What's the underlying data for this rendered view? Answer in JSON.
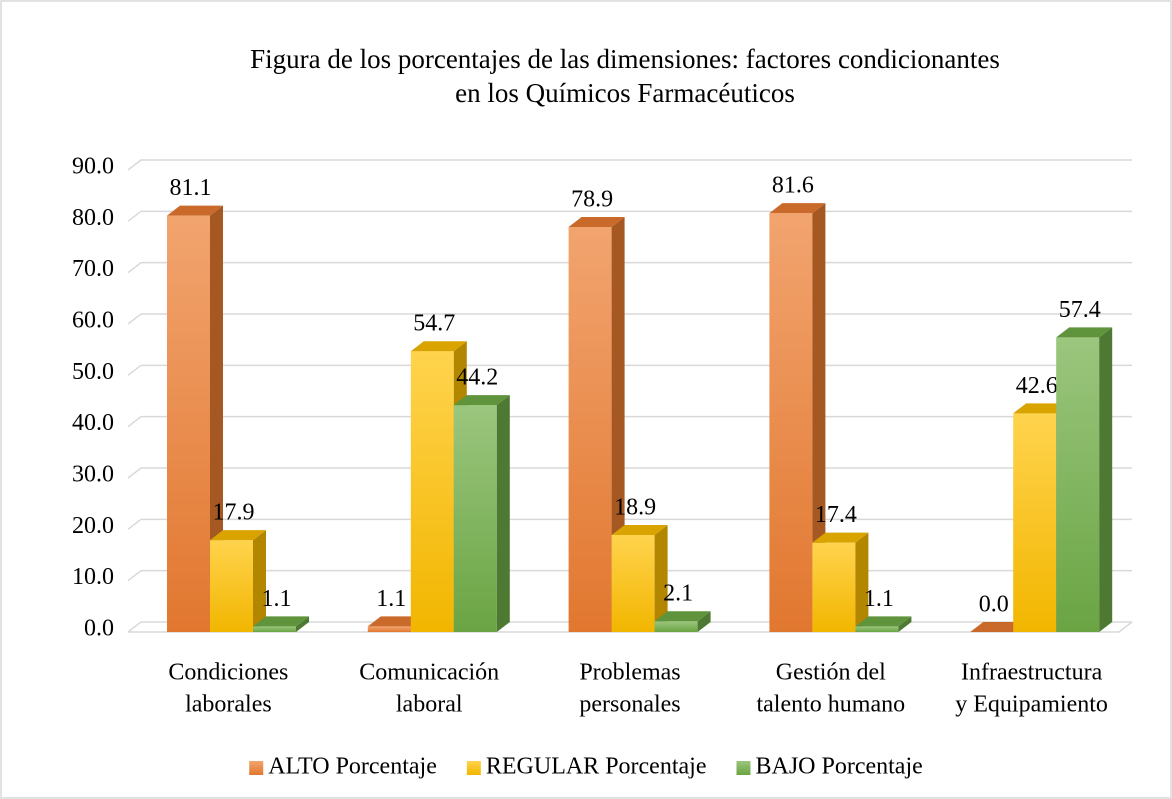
{
  "chart_data": {
    "type": "bar3d",
    "title": [
      "Figura de los porcentajes de las dimensiones: factores condicionantes",
      "en los Químicos Farmacéuticos"
    ],
    "categories": [
      [
        "Condiciones",
        "laborales"
      ],
      [
        "Comunicación",
        "laboral"
      ],
      [
        "Problemas",
        "personales"
      ],
      [
        "Gestión del",
        "talento humano"
      ],
      [
        "Infraestructura",
        "y Equipamiento"
      ]
    ],
    "series": [
      {
        "name": "ALTO Porcentaje",
        "color": "#ed7d31",
        "values": [
          81.1,
          1.1,
          78.9,
          81.6,
          0.0
        ],
        "value_labels": [
          "81.1",
          "1.1",
          "78.9",
          "81.6",
          "0.0"
        ]
      },
      {
        "name": "REGULAR Porcentaje",
        "color": "#ffc000",
        "values": [
          17.9,
          54.7,
          18.9,
          17.4,
          42.6
        ],
        "value_labels": [
          "17.9",
          "54.7",
          "18.9",
          "17.4",
          "42.6"
        ]
      },
      {
        "name": "BAJO Porcentaje",
        "color": "#70ad47",
        "values": [
          1.1,
          44.2,
          2.1,
          1.1,
          57.4
        ],
        "value_labels": [
          "1.1",
          "44.2",
          "2.1",
          "1.1",
          "57.4"
        ]
      }
    ],
    "ylim": [
      0,
      90
    ],
    "yticks": [
      {
        "value": 0,
        "label": "0.0"
      },
      {
        "value": 10,
        "label": "10.0"
      },
      {
        "value": 20,
        "label": "20.0"
      },
      {
        "value": 30,
        "label": "30.0"
      },
      {
        "value": 40,
        "label": "40.0"
      },
      {
        "value": 50,
        "label": "50.0"
      },
      {
        "value": 60,
        "label": "60.0"
      },
      {
        "value": 70,
        "label": "70.0"
      },
      {
        "value": 80,
        "label": "80.0"
      },
      {
        "value": 90,
        "label": "90.0"
      }
    ],
    "grid": true,
    "legend": "bottom"
  }
}
